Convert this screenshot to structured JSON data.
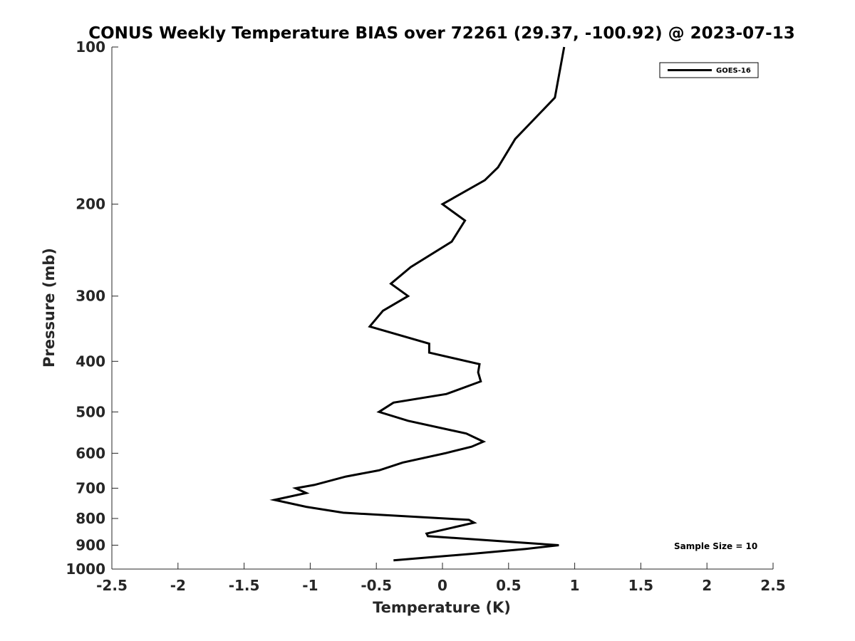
{
  "chart_data": {
    "type": "line",
    "title": "CONUS Weekly Temperature BIAS over 72261 (29.37, -100.92) @ 2023-07-13",
    "xlabel": "Temperature (K)",
    "ylabel": "Pressure (mb)",
    "xlim": [
      -2.5,
      2.5
    ],
    "ylim": [
      1000,
      100
    ],
    "yscale": "log",
    "y_reversed": true,
    "xticks": [
      "-2.5",
      "-2",
      "-1.5",
      "-1",
      "-0.5",
      "0",
      "0.5",
      "1",
      "1.5",
      "2",
      "2.5"
    ],
    "xtick_values": [
      -2.5,
      -2,
      -1.5,
      -1,
      -0.5,
      0,
      0.5,
      1,
      1.5,
      2,
      2.5
    ],
    "yticks": [
      "100",
      "200",
      "300",
      "400",
      "500",
      "600",
      "700",
      "800",
      "900",
      "1000"
    ],
    "ytick_values": [
      100,
      200,
      300,
      400,
      500,
      600,
      700,
      800,
      900,
      1000
    ],
    "grid": false,
    "legend_position": "top-right",
    "annotation": "Sample Size = 10",
    "series": [
      {
        "name": "GOES-16",
        "color": "#000000",
        "points": [
          {
            "x": 0.92,
            "y": 100
          },
          {
            "x": 0.85,
            "y": 125
          },
          {
            "x": 0.55,
            "y": 150
          },
          {
            "x": 0.42,
            "y": 170
          },
          {
            "x": 0.32,
            "y": 180
          },
          {
            "x": 0.0,
            "y": 200
          },
          {
            "x": 0.17,
            "y": 215
          },
          {
            "x": 0.07,
            "y": 236
          },
          {
            "x": -0.24,
            "y": 264
          },
          {
            "x": -0.39,
            "y": 284
          },
          {
            "x": -0.26,
            "y": 300
          },
          {
            "x": -0.45,
            "y": 320
          },
          {
            "x": -0.55,
            "y": 343
          },
          {
            "x": -0.1,
            "y": 370
          },
          {
            "x": -0.1,
            "y": 385
          },
          {
            "x": 0.28,
            "y": 405
          },
          {
            "x": 0.27,
            "y": 420
          },
          {
            "x": 0.29,
            "y": 437
          },
          {
            "x": 0.03,
            "y": 462
          },
          {
            "x": -0.37,
            "y": 480
          },
          {
            "x": -0.48,
            "y": 500
          },
          {
            "x": -0.26,
            "y": 520
          },
          {
            "x": 0.18,
            "y": 550
          },
          {
            "x": 0.31,
            "y": 570
          },
          {
            "x": 0.22,
            "y": 583
          },
          {
            "x": 0.02,
            "y": 600
          },
          {
            "x": -0.3,
            "y": 625
          },
          {
            "x": -0.48,
            "y": 647
          },
          {
            "x": -0.73,
            "y": 665
          },
          {
            "x": -0.97,
            "y": 690
          },
          {
            "x": -1.11,
            "y": 700
          },
          {
            "x": -1.03,
            "y": 715
          },
          {
            "x": -1.27,
            "y": 737
          },
          {
            "x": -1.03,
            "y": 760
          },
          {
            "x": -0.75,
            "y": 780
          },
          {
            "x": 0.2,
            "y": 805
          },
          {
            "x": 0.24,
            "y": 815
          },
          {
            "x": -0.12,
            "y": 855
          },
          {
            "x": -0.11,
            "y": 865
          },
          {
            "x": 0.88,
            "y": 900
          },
          {
            "x": 0.63,
            "y": 915
          },
          {
            "x": 0.22,
            "y": 935
          },
          {
            "x": -0.37,
            "y": 962
          }
        ]
      }
    ]
  }
}
